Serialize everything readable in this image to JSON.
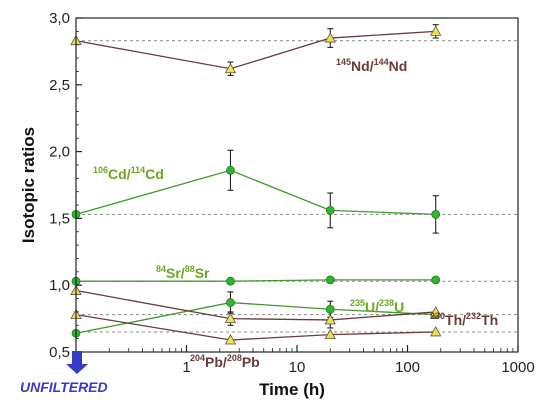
{
  "chart_data": {
    "type": "line",
    "xlabel": "Time (h)",
    "ylabel": "Isotopic ratios",
    "x_scale": "log",
    "xlim": [
      0.1,
      1000
    ],
    "ylim": [
      0.5,
      3.0
    ],
    "x_ticks": [
      "1",
      "10",
      "100",
      "1000"
    ],
    "y_ticks": [
      "0,5",
      "1,0",
      "1,5",
      "2,0",
      "2,5",
      "3,0"
    ],
    "unfiltered_label": "UNFILTERED",
    "reference_lines": [
      2.83,
      1.53,
      1.03,
      0.78,
      0.65
    ],
    "series": [
      {
        "label_parts": [
          {
            "text": "145",
            "sup": true
          },
          {
            "text": "Nd/",
            "sup": false
          },
          {
            "text": "144",
            "sup": true
          },
          {
            "text": "Nd",
            "sup": false
          }
        ],
        "color": "#6b3a3a",
        "marker": "triangle",
        "marker_color": "#f2e24a",
        "points": [
          {
            "x": "UNFILTERED",
            "y": 2.83
          },
          {
            "x": 2.5,
            "y": 2.62,
            "err": 0.05
          },
          {
            "x": 20,
            "y": 2.85,
            "err": 0.07
          },
          {
            "x": 180,
            "y": 2.9,
            "err": 0.05
          }
        ]
      },
      {
        "label_parts": [
          {
            "text": "106",
            "sup": true
          },
          {
            "text": "Cd/",
            "sup": false
          },
          {
            "text": "114",
            "sup": true
          },
          {
            "text": "Cd",
            "sup": false
          }
        ],
        "color": "#3f9a2f",
        "marker": "circle",
        "marker_color": "#2fb52f",
        "points": [
          {
            "x": "UNFILTERED",
            "y": 1.53
          },
          {
            "x": 2.5,
            "y": 1.86,
            "err": 0.15
          },
          {
            "x": 20,
            "y": 1.56,
            "err": 0.13
          },
          {
            "x": 180,
            "y": 1.53,
            "err": 0.14
          }
        ]
      },
      {
        "label_parts": [
          {
            "text": "84",
            "sup": true
          },
          {
            "text": "Sr/",
            "sup": false
          },
          {
            "text": "88",
            "sup": true
          },
          {
            "text": "Sr",
            "sup": false
          }
        ],
        "color": "#3f9a2f",
        "marker": "circle",
        "marker_color": "#2fb52f",
        "points": [
          {
            "x": "UNFILTERED",
            "y": 1.03
          },
          {
            "x": 2.5,
            "y": 1.03
          },
          {
            "x": 20,
            "y": 1.04
          },
          {
            "x": 180,
            "y": 1.04
          }
        ]
      },
      {
        "label_parts": [
          {
            "text": "235",
            "sup": true
          },
          {
            "text": "U/",
            "sup": false
          },
          {
            "text": "238",
            "sup": true
          },
          {
            "text": "U",
            "sup": false
          }
        ],
        "color": "#3f9a2f",
        "marker": "circle",
        "marker_color": "#2fb52f",
        "points": [
          {
            "x": "UNFILTERED",
            "y": 0.64
          },
          {
            "x": 2.5,
            "y": 0.87,
            "err": 0.08
          },
          {
            "x": 20,
            "y": 0.82,
            "err": 0.06
          },
          {
            "x": 180,
            "y": 0.78
          }
        ]
      },
      {
        "label_parts": [
          {
            "text": "230",
            "sup": true
          },
          {
            "text": "Th/",
            "sup": false
          },
          {
            "text": "232",
            "sup": true
          },
          {
            "text": "Th",
            "sup": false
          }
        ],
        "color": "#6b3a3a",
        "marker": "triangle",
        "marker_color": "#f2e24a",
        "points": [
          {
            "x": "UNFILTERED",
            "y": 0.96
          },
          {
            "x": 2.5,
            "y": 0.75,
            "err": 0.05
          },
          {
            "x": 20,
            "y": 0.74,
            "err": 0.06
          },
          {
            "x": 180,
            "y": 0.8
          }
        ]
      },
      {
        "label_parts": [
          {
            "text": "204",
            "sup": true
          },
          {
            "text": "Pb/",
            "sup": false
          },
          {
            "text": "208",
            "sup": true
          },
          {
            "text": "Pb",
            "sup": false
          }
        ],
        "color": "#6b3a3a",
        "marker": "triangle",
        "marker_color": "#f2e24a",
        "points": [
          {
            "x": "UNFILTERED",
            "y": 0.78
          },
          {
            "x": 2.5,
            "y": 0.59
          },
          {
            "x": 20,
            "y": 0.63
          },
          {
            "x": 180,
            "y": 0.65
          }
        ]
      }
    ]
  }
}
